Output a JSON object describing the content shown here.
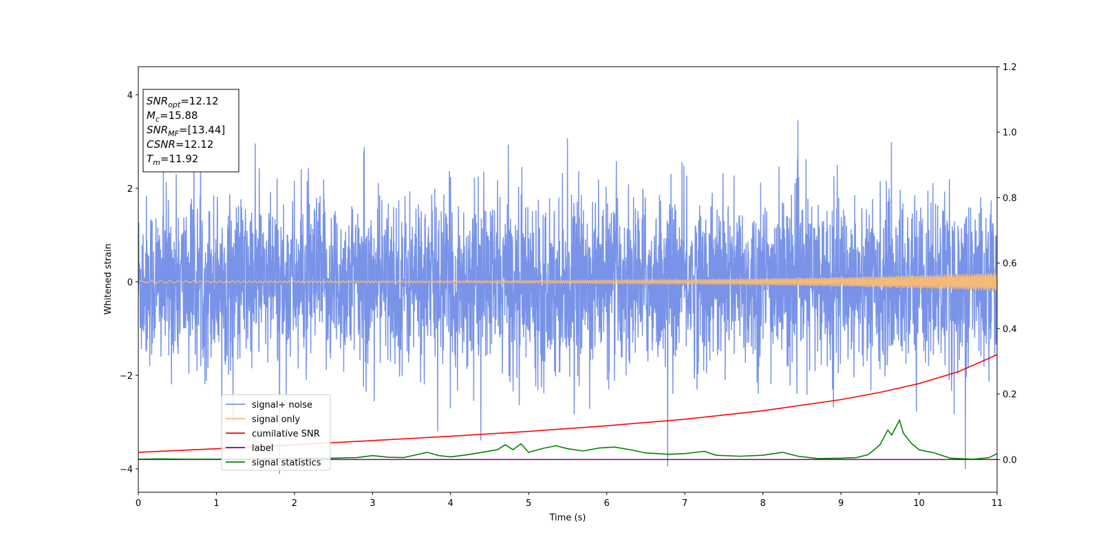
{
  "chart_data": {
    "type": "line",
    "xlabel": "Time (s)",
    "ylabel": "Whitened strain",
    "xlim": [
      0,
      11
    ],
    "ylim": [
      -4.5,
      4.6
    ],
    "ylim_right": [
      -0.1,
      1.2
    ],
    "xticks": [
      0,
      1,
      2,
      3,
      4,
      5,
      6,
      7,
      8,
      9,
      10,
      11
    ],
    "yticks": [
      -4,
      -2,
      0,
      2,
      4
    ],
    "yticks_right": [
      0.0,
      0.2,
      0.4,
      0.6,
      0.8,
      1.0,
      1.2
    ],
    "grid": false,
    "legend_position": "lower-left",
    "annotation_box": {
      "position": "top-left",
      "lines": [
        {
          "symbol": "SNR",
          "sub": "opt",
          "value": "=12.12"
        },
        {
          "symbol": "M",
          "sub": "c",
          "value": "=15.88"
        },
        {
          "symbol": "SNR",
          "sub": "MF",
          "value": "=[13.44]"
        },
        {
          "symbol": "CSNR",
          "sub": "",
          "value": "=12.12"
        },
        {
          "symbol": "T",
          "sub": "m",
          "value": "=11.92"
        }
      ]
    },
    "series": [
      {
        "name": "signal+ noise",
        "color": "#7893e8",
        "axis": "left",
        "kind": "noise",
        "noise_sigma": 0.9,
        "noise_range": [
          -4.1,
          3.9
        ]
      },
      {
        "name": "signal only",
        "color": "#f5b978",
        "axis": "left",
        "kind": "chirp",
        "amplitude_start": 0.02,
        "amplitude_end": 0.2
      },
      {
        "name": "cumilative SNR",
        "color": "#ff0000",
        "axis": "right",
        "x": [
          0,
          1,
          2,
          3,
          4,
          5,
          6,
          7,
          8,
          9,
          9.5,
          10,
          10.5,
          11
        ],
        "values": [
          0.022,
          0.033,
          0.045,
          0.058,
          0.071,
          0.086,
          0.103,
          0.123,
          0.149,
          0.183,
          0.205,
          0.232,
          0.268,
          0.32
        ]
      },
      {
        "name": "label",
        "color": "#800080",
        "axis": "right",
        "x": [
          0,
          11
        ],
        "values": [
          0.0,
          0.0
        ]
      },
      {
        "name": "signal statistics",
        "color": "#008000",
        "axis": "right",
        "x": [
          0,
          0.3,
          0.6,
          1,
          1.5,
          2,
          2.5,
          2.8,
          3.0,
          3.2,
          3.4,
          3.55,
          3.7,
          3.85,
          4.0,
          4.2,
          4.4,
          4.6,
          4.7,
          4.8,
          4.9,
          5.0,
          5.2,
          5.35,
          5.5,
          5.7,
          5.9,
          6.1,
          6.3,
          6.5,
          6.8,
          7.0,
          7.25,
          7.4,
          7.7,
          8.0,
          8.25,
          8.45,
          8.7,
          9.0,
          9.2,
          9.35,
          9.5,
          9.6,
          9.65,
          9.75,
          9.8,
          9.9,
          10.0,
          10.2,
          10.4,
          10.7,
          10.9,
          11.0
        ],
        "values": [
          0.001,
          0.002,
          0.001,
          0.001,
          0.002,
          0.003,
          0.004,
          0.006,
          0.012,
          0.007,
          0.006,
          0.014,
          0.022,
          0.012,
          0.008,
          0.014,
          0.022,
          0.03,
          0.045,
          0.03,
          0.048,
          0.022,
          0.035,
          0.042,
          0.033,
          0.026,
          0.035,
          0.038,
          0.03,
          0.02,
          0.016,
          0.018,
          0.025,
          0.013,
          0.01,
          0.013,
          0.022,
          0.01,
          0.003,
          0.004,
          0.006,
          0.015,
          0.045,
          0.09,
          0.075,
          0.12,
          0.08,
          0.05,
          0.03,
          0.02,
          0.004,
          0.001,
          0.006,
          0.018
        ]
      }
    ]
  }
}
